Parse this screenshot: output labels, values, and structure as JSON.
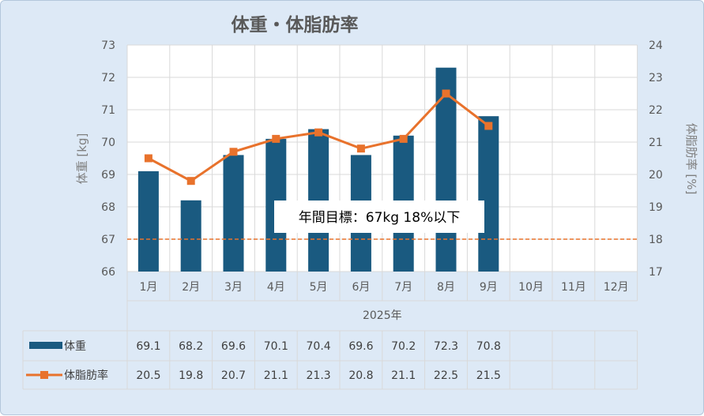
{
  "chart_data": {
    "type": "bar",
    "title": "体重・体脂肪率",
    "categories": [
      "1月",
      "2月",
      "3月",
      "4月",
      "5月",
      "6月",
      "7月",
      "8月",
      "9月",
      "10月",
      "11月",
      "12月"
    ],
    "year_label": "2025年",
    "series": [
      {
        "name": "体重",
        "kind": "bar",
        "axis": "left",
        "color": "#1a5a80",
        "values": [
          69.1,
          68.2,
          69.6,
          70.1,
          70.4,
          69.6,
          70.2,
          72.3,
          70.8,
          null,
          null,
          null
        ]
      },
      {
        "name": "体脂肪率",
        "kind": "line",
        "axis": "right",
        "color": "#e8722c",
        "values": [
          20.5,
          19.8,
          20.7,
          21.1,
          21.3,
          20.8,
          21.1,
          22.5,
          21.5,
          null,
          null,
          null
        ]
      }
    ],
    "y_left": {
      "label": "体重 [kg]",
      "min": 66,
      "max": 73,
      "ticks": [
        73,
        72,
        71,
        70,
        69,
        68,
        67,
        66
      ]
    },
    "y_right": {
      "label": "体脂肪率 [%]",
      "min": 17,
      "max": 24,
      "ticks": [
        24,
        23,
        22,
        21,
        20,
        19,
        18,
        17
      ]
    },
    "target": {
      "value": 67,
      "axis": "left",
      "color": "#e8722c",
      "annotation": "年間目標：67kg 18%以下"
    },
    "grid": true,
    "data_table": true
  }
}
